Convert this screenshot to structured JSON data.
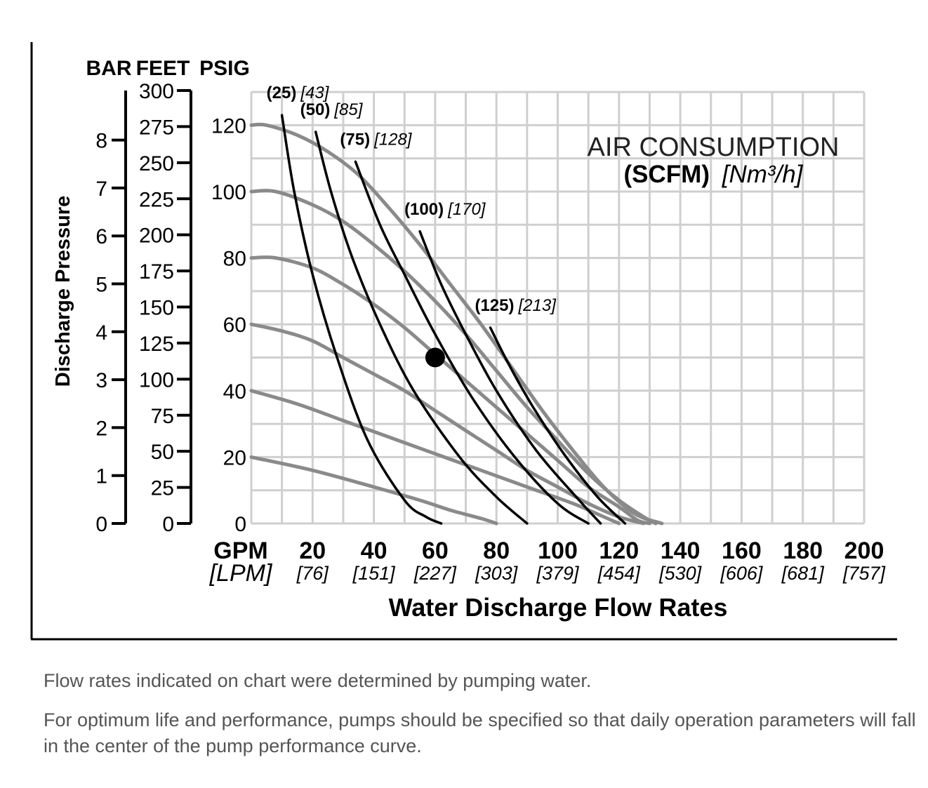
{
  "chart_data": {
    "type": "line",
    "xlabel": "Water Discharge Flow Rates",
    "ylabel": "Discharge Pressure",
    "x_unit_primary": "GPM",
    "x_unit_secondary": "[LPM]",
    "x_ticks": [
      {
        "value": 20,
        "label": "20",
        "sub": "[76]"
      },
      {
        "value": 40,
        "label": "40",
        "sub": "[151]"
      },
      {
        "value": 60,
        "label": "60",
        "sub": "[227]"
      },
      {
        "value": 80,
        "label": "80",
        "sub": "[303]"
      },
      {
        "value": 100,
        "label": "100",
        "sub": "[379]"
      },
      {
        "value": 120,
        "label": "120",
        "sub": "[454]"
      },
      {
        "value": 140,
        "label": "140",
        "sub": "[530]"
      },
      {
        "value": 160,
        "label": "160",
        "sub": "[606]"
      },
      {
        "value": 180,
        "label": "180",
        "sub": "[681]"
      },
      {
        "value": 200,
        "label": "200",
        "sub": "[757]"
      }
    ],
    "xlim": [
      0,
      200
    ],
    "ylim": [
      0,
      130
    ],
    "y_axes": {
      "psig": {
        "title": "PSIG",
        "ticks": [
          "0",
          "20",
          "40",
          "60",
          "80",
          "100",
          "120"
        ],
        "values": [
          0,
          20,
          40,
          60,
          80,
          100,
          120
        ]
      },
      "feet": {
        "title": "FEET",
        "ticks": [
          "0",
          "25",
          "50",
          "75",
          "100",
          "125",
          "150",
          "175",
          "200",
          "225",
          "250",
          "275",
          "300"
        ],
        "values": [
          0,
          25,
          50,
          75,
          100,
          125,
          150,
          175,
          200,
          225,
          250,
          275,
          300
        ]
      },
      "bar": {
        "title": "BAR",
        "ticks": [
          "0",
          "1",
          "2",
          "3",
          "4",
          "5",
          "6",
          "7",
          "8"
        ],
        "values": [
          0,
          1,
          2,
          3,
          4,
          5,
          6,
          7,
          8
        ]
      }
    },
    "grid": true,
    "annotation_title": "AIR CONSUMPTION",
    "annotation_units_bold": "(SCFM)",
    "annotation_units_italic": "[Nm³/h]",
    "air_curves": [
      {
        "bold": "(25)",
        "italic": "[43]",
        "points": [
          [
            10,
            123
          ],
          [
            14,
            100
          ],
          [
            20,
            75
          ],
          [
            28,
            50
          ],
          [
            38,
            25
          ],
          [
            50,
            7
          ],
          [
            57,
            2
          ],
          [
            62,
            0
          ]
        ]
      },
      {
        "bold": "(50)",
        "italic": "[85]",
        "points": [
          [
            21,
            118
          ],
          [
            26,
            100
          ],
          [
            33,
            80
          ],
          [
            42,
            60
          ],
          [
            53,
            40
          ],
          [
            68,
            20
          ],
          [
            80,
            8
          ],
          [
            90,
            0
          ]
        ]
      },
      {
        "bold": "(75)",
        "italic": "[128]",
        "points": [
          [
            34,
            109
          ],
          [
            42,
            90
          ],
          [
            50,
            75
          ],
          [
            60,
            57
          ],
          [
            72,
            38
          ],
          [
            86,
            20
          ],
          [
            100,
            6
          ],
          [
            110,
            0
          ]
        ]
      },
      {
        "bold": "(100)",
        "italic": "[170]",
        "points": [
          [
            55,
            88
          ],
          [
            62,
            72
          ],
          [
            70,
            57
          ],
          [
            80,
            40
          ],
          [
            93,
            22
          ],
          [
            107,
            7
          ],
          [
            114,
            0
          ]
        ]
      },
      {
        "bold": "(125)",
        "italic": "[213]",
        "points": [
          [
            78,
            59
          ],
          [
            84,
            48
          ],
          [
            92,
            35
          ],
          [
            102,
            21
          ],
          [
            113,
            8
          ],
          [
            122,
            0
          ]
        ]
      }
    ],
    "pressure_curves": [
      {
        "points": [
          [
            0,
            120
          ],
          [
            5,
            120
          ],
          [
            15,
            117
          ],
          [
            25,
            112
          ],
          [
            35,
            105
          ],
          [
            45,
            95
          ],
          [
            55,
            84
          ],
          [
            65,
            72
          ],
          [
            75,
            60
          ],
          [
            85,
            47
          ],
          [
            95,
            34
          ],
          [
            105,
            22
          ],
          [
            115,
            11
          ],
          [
            125,
            3
          ],
          [
            134,
            0
          ]
        ]
      },
      {
        "points": [
          [
            0,
            100
          ],
          [
            8,
            100
          ],
          [
            20,
            96
          ],
          [
            30,
            91
          ],
          [
            40,
            84
          ],
          [
            50,
            76
          ],
          [
            60,
            67
          ],
          [
            70,
            57
          ],
          [
            80,
            46
          ],
          [
            90,
            35
          ],
          [
            100,
            25
          ],
          [
            110,
            15
          ],
          [
            120,
            7
          ],
          [
            128,
            2
          ],
          [
            132,
            0
          ]
        ]
      },
      {
        "points": [
          [
            0,
            80
          ],
          [
            8,
            80
          ],
          [
            20,
            77
          ],
          [
            30,
            72
          ],
          [
            40,
            66
          ],
          [
            50,
            59
          ],
          [
            60,
            51
          ],
          [
            70,
            43
          ],
          [
            80,
            35
          ],
          [
            90,
            27
          ],
          [
            100,
            19
          ],
          [
            110,
            11
          ],
          [
            120,
            5
          ],
          [
            126,
            1
          ],
          [
            130,
            0
          ]
        ]
      },
      {
        "points": [
          [
            0,
            60
          ],
          [
            10,
            58
          ],
          [
            20,
            55
          ],
          [
            30,
            50
          ],
          [
            40,
            45
          ],
          [
            50,
            40
          ],
          [
            60,
            34
          ],
          [
            70,
            28
          ],
          [
            80,
            22
          ],
          [
            90,
            16
          ],
          [
            100,
            11
          ],
          [
            110,
            6
          ],
          [
            120,
            2
          ],
          [
            128,
            0
          ]
        ]
      },
      {
        "points": [
          [
            0,
            40
          ],
          [
            15,
            36
          ],
          [
            30,
            31
          ],
          [
            45,
            26
          ],
          [
            60,
            21
          ],
          [
            75,
            16
          ],
          [
            90,
            11
          ],
          [
            105,
            6
          ],
          [
            115,
            2
          ],
          [
            120,
            0
          ]
        ]
      },
      {
        "points": [
          [
            0,
            20
          ],
          [
            20,
            16
          ],
          [
            40,
            11
          ],
          [
            55,
            7
          ],
          [
            65,
            4
          ],
          [
            75,
            1.5
          ],
          [
            80,
            0
          ]
        ]
      }
    ],
    "operating_point": {
      "x": 60,
      "y": 50
    }
  },
  "footer": {
    "note1": "Flow rates indicated on chart were determined by pumping water.",
    "note2": "For optimum life and performance, pumps should be specified so that daily operation parameters will fall in the center of the pump performance curve."
  }
}
